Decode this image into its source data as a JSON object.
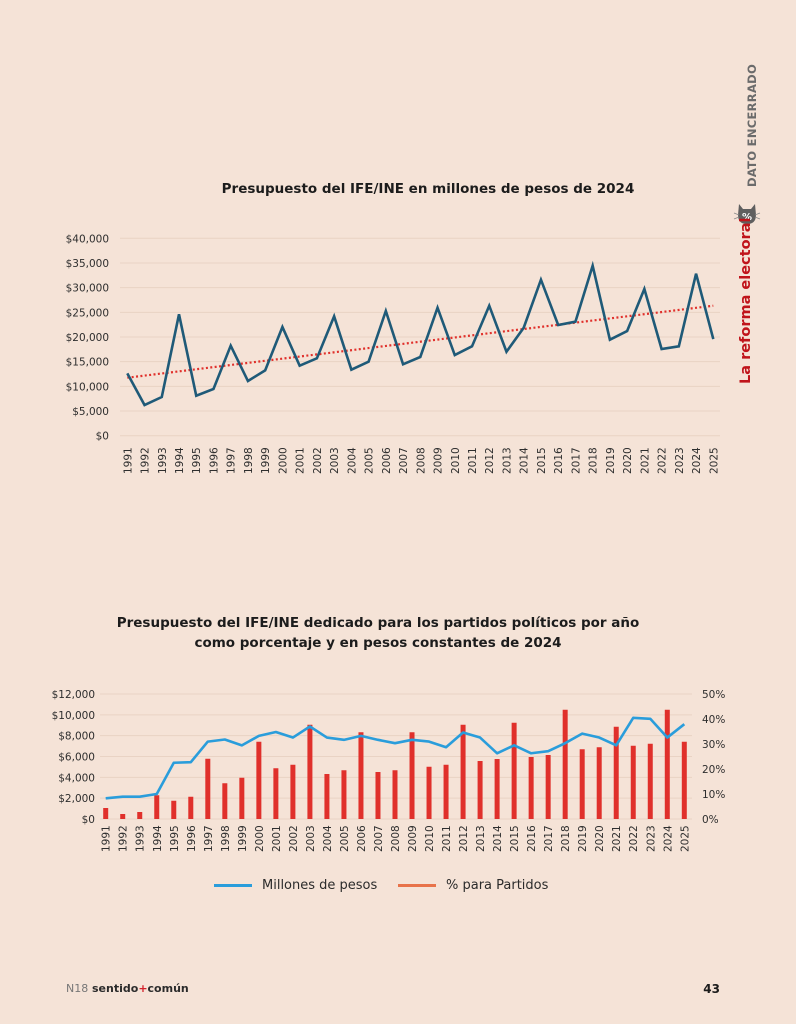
{
  "side": {
    "section": "DATO ENCERRADO",
    "topic": "La reforma electoral",
    "icon": "cat-percent-icon"
  },
  "footer": {
    "issue": "N18",
    "brand_a": "sentido",
    "brand_sep": "+",
    "brand_b": "común",
    "page": "43"
  },
  "colors": {
    "background": "#f5e3d7",
    "line1": "#1f5a78",
    "trend": "#e0302b",
    "line2": "#2a9ddb",
    "bars": "#e0302b",
    "legend_bar": "#e8734a",
    "accent_red": "#c0141b"
  },
  "chart_data": [
    {
      "type": "line",
      "title": "Presupuesto del IFE/INE en millones de pesos de 2024",
      "xlabel": "",
      "ylabel": "",
      "categories": [
        "1991",
        "1992",
        "1993",
        "1994",
        "1995",
        "1996",
        "1997",
        "1998",
        "1999",
        "2000",
        "2001",
        "2002",
        "2003",
        "2004",
        "2005",
        "2006",
        "2007",
        "2008",
        "2009",
        "2010",
        "2011",
        "2012",
        "2013",
        "2014",
        "2015",
        "2016",
        "2017",
        "2018",
        "2019",
        "2020",
        "2021",
        "2022",
        "2023",
        "2024",
        "2025"
      ],
      "series": [
        {
          "name": "Presupuesto",
          "values": [
            12640,
            6220,
            7840,
            24600,
            8100,
            9460,
            18240,
            11080,
            13250,
            22030,
            14190,
            15680,
            24190,
            13380,
            15000,
            25270,
            14470,
            15950,
            25940,
            16350,
            18110,
            26340,
            17020,
            21880,
            31610,
            22430,
            23100,
            34450,
            19450,
            21210,
            29730,
            17570,
            18110,
            32830,
            19590
          ]
        },
        {
          "name": "Tendencia lineal",
          "style": "dotted",
          "start": 11750,
          "end": 26340
        }
      ],
      "ylim": [
        0,
        40000
      ],
      "yticks": [
        0,
        5000,
        10000,
        15000,
        20000,
        25000,
        30000,
        35000,
        40000
      ],
      "ytick_labels": [
        "$0",
        "$5,000",
        "$10,000",
        "$15,000",
        "$20,000",
        "$25,000",
        "$30,000",
        "$35,000",
        "$40,000"
      ],
      "grid": true,
      "legend": "none"
    },
    {
      "type": "bar",
      "title_line1": "Presupuesto del IFE/INE dedicado para los partidos  políticos por año",
      "title_line2": "como porcentaje y en pesos constantes de 2024",
      "categories": [
        "1991",
        "1992",
        "1993",
        "1994",
        "1995",
        "1996",
        "1997",
        "1998",
        "1999",
        "2000",
        "2001",
        "2002",
        "2003",
        "2004",
        "2005",
        "2006",
        "2007",
        "2008",
        "2009",
        "2010",
        "2011",
        "2012",
        "2013",
        "2014",
        "2015",
        "2016",
        "2017",
        "2018",
        "2019",
        "2020",
        "2021",
        "2022",
        "2023",
        "2024",
        "2025"
      ],
      "series": [
        {
          "name": "Millones de pesos",
          "type": "line",
          "axis": "left",
          "values": [
            1990,
            2140,
            2140,
            2400,
            5400,
            5450,
            7430,
            7630,
            7070,
            7980,
            8350,
            7820,
            8880,
            7820,
            7600,
            7980,
            7600,
            7280,
            7600,
            7430,
            6890,
            8300,
            7820,
            6310,
            7070,
            6310,
            6510,
            7280,
            8200,
            7820,
            7070,
            9710,
            9620,
            7820,
            9100
          ]
        },
        {
          "name": "% para Partidos",
          "type": "bar",
          "axis": "right",
          "values": [
            4.4,
            2.0,
            2.8,
            9.5,
            7.3,
            8.9,
            24.1,
            14.3,
            16.5,
            30.9,
            20.3,
            21.7,
            37.7,
            18.0,
            19.5,
            34.7,
            18.8,
            19.5,
            34.7,
            20.9,
            21.7,
            37.7,
            23.2,
            24.0,
            38.5,
            24.8,
            25.6,
            43.7,
            27.9,
            28.7,
            36.9,
            29.3,
            30.1,
            43.7,
            30.9
          ]
        }
      ],
      "ylim_left": [
        0,
        12000
      ],
      "yticks_left": [
        0,
        2000,
        4000,
        6000,
        8000,
        10000,
        12000
      ],
      "ytick_labels_left": [
        "$0",
        "$2,000",
        "$4,000",
        "$6,000",
        "$8,000",
        "$10,000",
        "$12,000"
      ],
      "ylim_right": [
        0,
        50
      ],
      "yticks_right": [
        0,
        10,
        20,
        30,
        40,
        50
      ],
      "ytick_labels_right": [
        "0%",
        "10%",
        "20%",
        "30%",
        "40%",
        "50%"
      ],
      "grid": true,
      "legend": "bottom-center",
      "legend_labels": [
        "Millones de pesos",
        "% para Partidos"
      ]
    }
  ]
}
